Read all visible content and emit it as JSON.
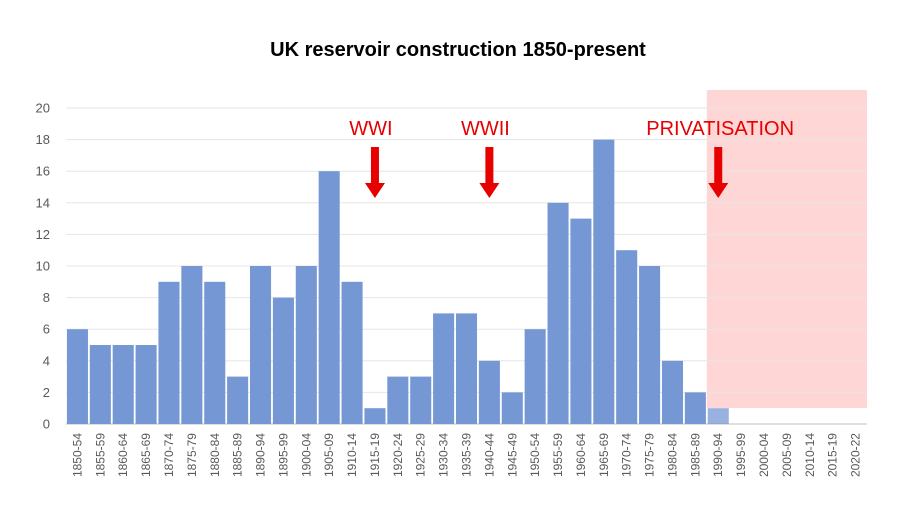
{
  "chart_data": {
    "type": "bar",
    "title": "UK reservoir construction 1850-present",
    "xlabel": "",
    "ylabel": "",
    "ylim": [
      0,
      20
    ],
    "yticks": [
      0,
      2,
      4,
      6,
      8,
      10,
      12,
      14,
      16,
      18,
      20
    ],
    "grid": true,
    "categories": [
      "1850-54",
      "1855-59",
      "1860-64",
      "1865-69",
      "1870-74",
      "1875-79",
      "1880-84",
      "1885-89",
      "1890-94",
      "1895-99",
      "1900-04",
      "1905-09",
      "1910-14",
      "1915-19",
      "1920-24",
      "1925-29",
      "1930-34",
      "1935-39",
      "1940-44",
      "1945-49",
      "1950-54",
      "1955-59",
      "1960-64",
      "1965-69",
      "1970-74",
      "1975-79",
      "1980-84",
      "1985-89",
      "1990-94",
      "1995-99",
      "2000-04",
      "2005-09",
      "2010-14",
      "2015-19",
      "2020-22"
    ],
    "values": [
      6,
      5,
      5,
      5,
      9,
      10,
      9,
      3,
      10,
      8,
      10,
      16,
      9,
      1,
      3,
      3,
      7,
      7,
      4,
      2,
      6,
      14,
      13,
      18,
      11,
      10,
      4,
      2,
      1,
      0,
      0,
      0,
      0,
      0,
      0
    ],
    "bar_color": "#7597d4",
    "shaded_region": {
      "from_category": "1990-94",
      "to_category": "2020-22",
      "color": "#ffd6d6"
    },
    "annotations": [
      {
        "text": "WWI",
        "arrow_category": "1915-19",
        "color": "#e60000"
      },
      {
        "text": "WWII",
        "arrow_category": "1940-44",
        "color": "#e60000"
      },
      {
        "text": "PRIVATISATION",
        "arrow_category": "1990-94",
        "color": "#e60000"
      }
    ]
  }
}
